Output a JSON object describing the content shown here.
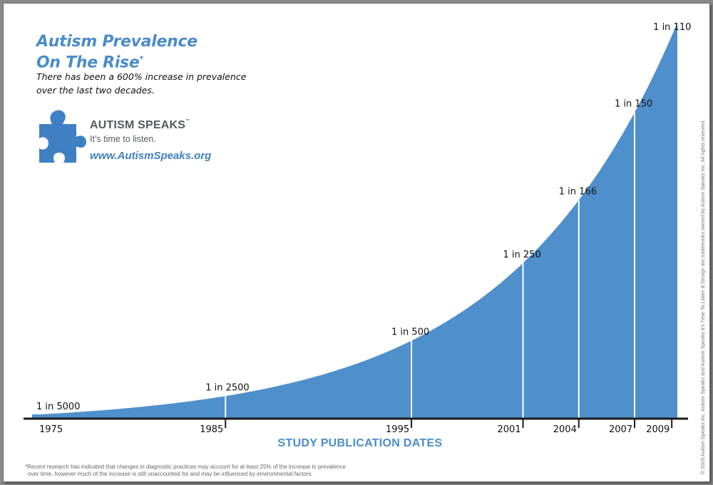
{
  "header": {
    "title_line1": "Autism Prevalence",
    "title_line2": "On The Rise",
    "title_mark": "*",
    "subtitle_line1": "There has been a 600% increase in prevalence",
    "subtitle_line2": "over the last two decades."
  },
  "branding": {
    "name": "AUTISM SPEAKS",
    "trademark": "™",
    "tagline": "It’s time to listen.",
    "url": "www.AutismSpeaks.org",
    "logo_icon": "puzzle-piece-icon",
    "logo_color": "#3f80c4"
  },
  "footnote": {
    "line1": "*Recent research has indicated that changes in diagnostic practices may account for at least 25% of the increase in prevalence",
    "line2": "over time, however much of the increase is still unaccounted for and may be influenced by environmental factors."
  },
  "copyright": "© 2009 Autism Speaks Inc. Autism Speaks and Autism Speaks It's Time To Listen & Design are trademarks owned by Autism Speaks Inc. All rights reserved.",
  "chart_data": {
    "type": "area",
    "xlabel": "STUDY PUBLICATION DATES",
    "ylabel": "",
    "x": [
      1975,
      1985,
      1995,
      2001,
      2004,
      2007,
      2009
    ],
    "x_tick_labels": [
      "1975",
      "1985",
      "1995",
      "2001",
      "2004",
      "2007",
      "2009"
    ],
    "series": [
      {
        "values": [
          0.0002,
          0.0004,
          0.002,
          0.004,
          0.006024,
          0.006667,
          0.009091
        ],
        "labels": [
          "1 in 5000",
          "1 in 2500",
          "1 in 500",
          "1 in 250",
          "1 in 166",
          "1 in 150",
          "1 in 110"
        ]
      }
    ],
    "fill_color": "#4f8fcc",
    "axis_color": "#1a1a1a",
    "grid": false,
    "legend": "none"
  }
}
